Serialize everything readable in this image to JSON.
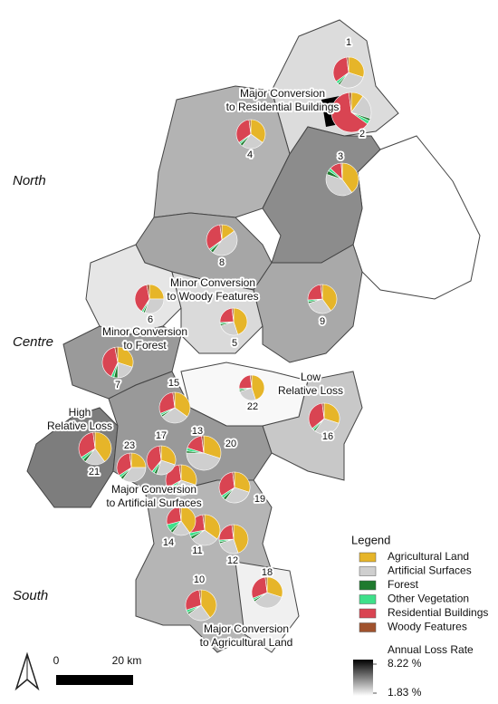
{
  "map": {
    "zones": [
      "North",
      "Centre",
      "South"
    ],
    "annotations": [
      {
        "lines": [
          "Major Conversion",
          "to Residential Buildings"
        ]
      },
      {
        "lines": [
          "Minor Conversion",
          "to Woody Features"
        ]
      },
      {
        "lines": [
          "Minor Conversion",
          "to Forest"
        ]
      },
      {
        "lines": [
          "Low",
          "Relative Loss"
        ]
      },
      {
        "lines": [
          "High",
          "Relative Loss"
        ]
      },
      {
        "lines": [
          "Major Conversion",
          "to Artificial Surfaces"
        ]
      },
      {
        "lines": [
          "Major Conversion",
          "to Agricultural Land"
        ]
      }
    ],
    "legend": {
      "title": "Legend",
      "items": [
        {
          "name": "Agricultural Land",
          "color": "#e6b529"
        },
        {
          "name": "Artificial Surfaces",
          "color": "#cfcfcf"
        },
        {
          "name": "Forest",
          "color": "#1f7a2e"
        },
        {
          "name": "Other Vegetation",
          "color": "#3ee08a"
        },
        {
          "name": "Residential Buildings",
          "color": "#d94452"
        },
        {
          "name": "Woody Features",
          "color": "#a0522d"
        }
      ]
    },
    "loss_rate": {
      "title": "Annual Loss Rate",
      "max": {
        "value": 8.22,
        "label": "8.22 %"
      },
      "min": {
        "value": 1.83,
        "label": "1.83 %"
      }
    },
    "scale": {
      "start": "0",
      "end": "20 km"
    },
    "pies": [
      {
        "label": "1",
        "values": [
          30,
          30,
          2,
          3,
          33,
          2
        ]
      },
      {
        "label": "2",
        "values": [
          10,
          20,
          2,
          3,
          63,
          2
        ]
      },
      {
        "label": "3",
        "values": [
          40,
          40,
          4,
          3,
          12,
          1
        ]
      },
      {
        "label": "4",
        "values": [
          35,
          25,
          3,
          2,
          33,
          2
        ]
      },
      {
        "label": "5",
        "values": [
          45,
          25,
          2,
          2,
          24,
          2
        ]
      },
      {
        "label": "6",
        "values": [
          25,
          30,
          2,
          2,
          38,
          3
        ]
      },
      {
        "label": "7",
        "values": [
          30,
          20,
          4,
          3,
          40,
          3
        ]
      },
      {
        "label": "8",
        "values": [
          15,
          45,
          3,
          2,
          33,
          2
        ]
      },
      {
        "label": "9",
        "values": [
          40,
          30,
          2,
          2,
          24,
          2
        ]
      },
      {
        "label": "10",
        "values": [
          40,
          25,
          2,
          3,
          28,
          2
        ]
      },
      {
        "label": "11",
        "values": [
          35,
          30,
          3,
          4,
          26,
          2
        ]
      },
      {
        "label": "12",
        "values": [
          45,
          25,
          2,
          2,
          24,
          2
        ]
      },
      {
        "label": "13",
        "values": [
          30,
          30,
          3,
          4,
          31,
          2
        ]
      },
      {
        "label": "14",
        "values": [
          40,
          20,
          3,
          8,
          27,
          2
        ]
      },
      {
        "label": "15",
        "values": [
          35,
          30,
          2,
          2,
          29,
          2
        ]
      },
      {
        "label": "16",
        "values": [
          30,
          30,
          2,
          2,
          34,
          2
        ]
      },
      {
        "label": "17",
        "values": [
          30,
          25,
          3,
          3,
          37,
          2
        ]
      },
      {
        "label": "18",
        "values": [
          30,
          35,
          2,
          2,
          29,
          2
        ]
      },
      {
        "label": "19",
        "values": [
          30,
          30,
          3,
          3,
          32,
          2
        ]
      },
      {
        "label": "20",
        "values": [
          30,
          45,
          2,
          3,
          18,
          2
        ]
      },
      {
        "label": "21",
        "values": [
          40,
          20,
          3,
          3,
          32,
          2
        ]
      },
      {
        "label": "22",
        "values": [
          45,
          25,
          2,
          2,
          24,
          2
        ]
      },
      {
        "label": "23",
        "values": [
          25,
          35,
          3,
          3,
          32,
          2
        ]
      }
    ]
  }
}
